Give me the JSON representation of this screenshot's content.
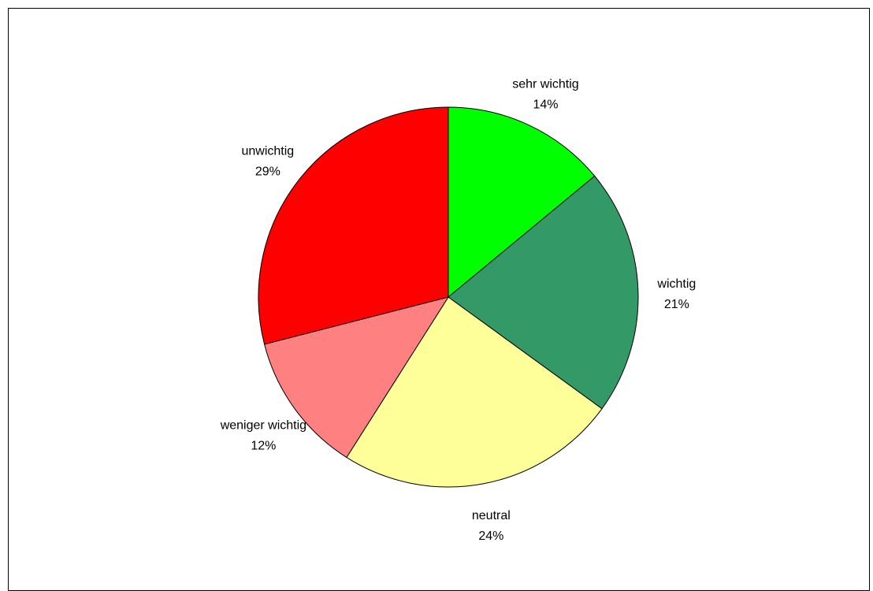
{
  "chart_data": {
    "type": "pie",
    "title": "",
    "slices": [
      {
        "label": "sehr wichtig",
        "value": 14,
        "percent_label": "14%",
        "color": "#00ff00"
      },
      {
        "label": "wichtig",
        "value": 21,
        "percent_label": "21%",
        "color": "#339966"
      },
      {
        "label": "neutral",
        "value": 24,
        "percent_label": "24%",
        "color": "#ffff99"
      },
      {
        "label": "weniger wichtig",
        "value": 12,
        "percent_label": "12%",
        "color": "#ff8080"
      },
      {
        "label": "unwichtig",
        "value": 29,
        "percent_label": "29%",
        "color": "#ff0000"
      }
    ],
    "start": "12 o'clock",
    "direction": "clockwise",
    "legend": "none"
  }
}
